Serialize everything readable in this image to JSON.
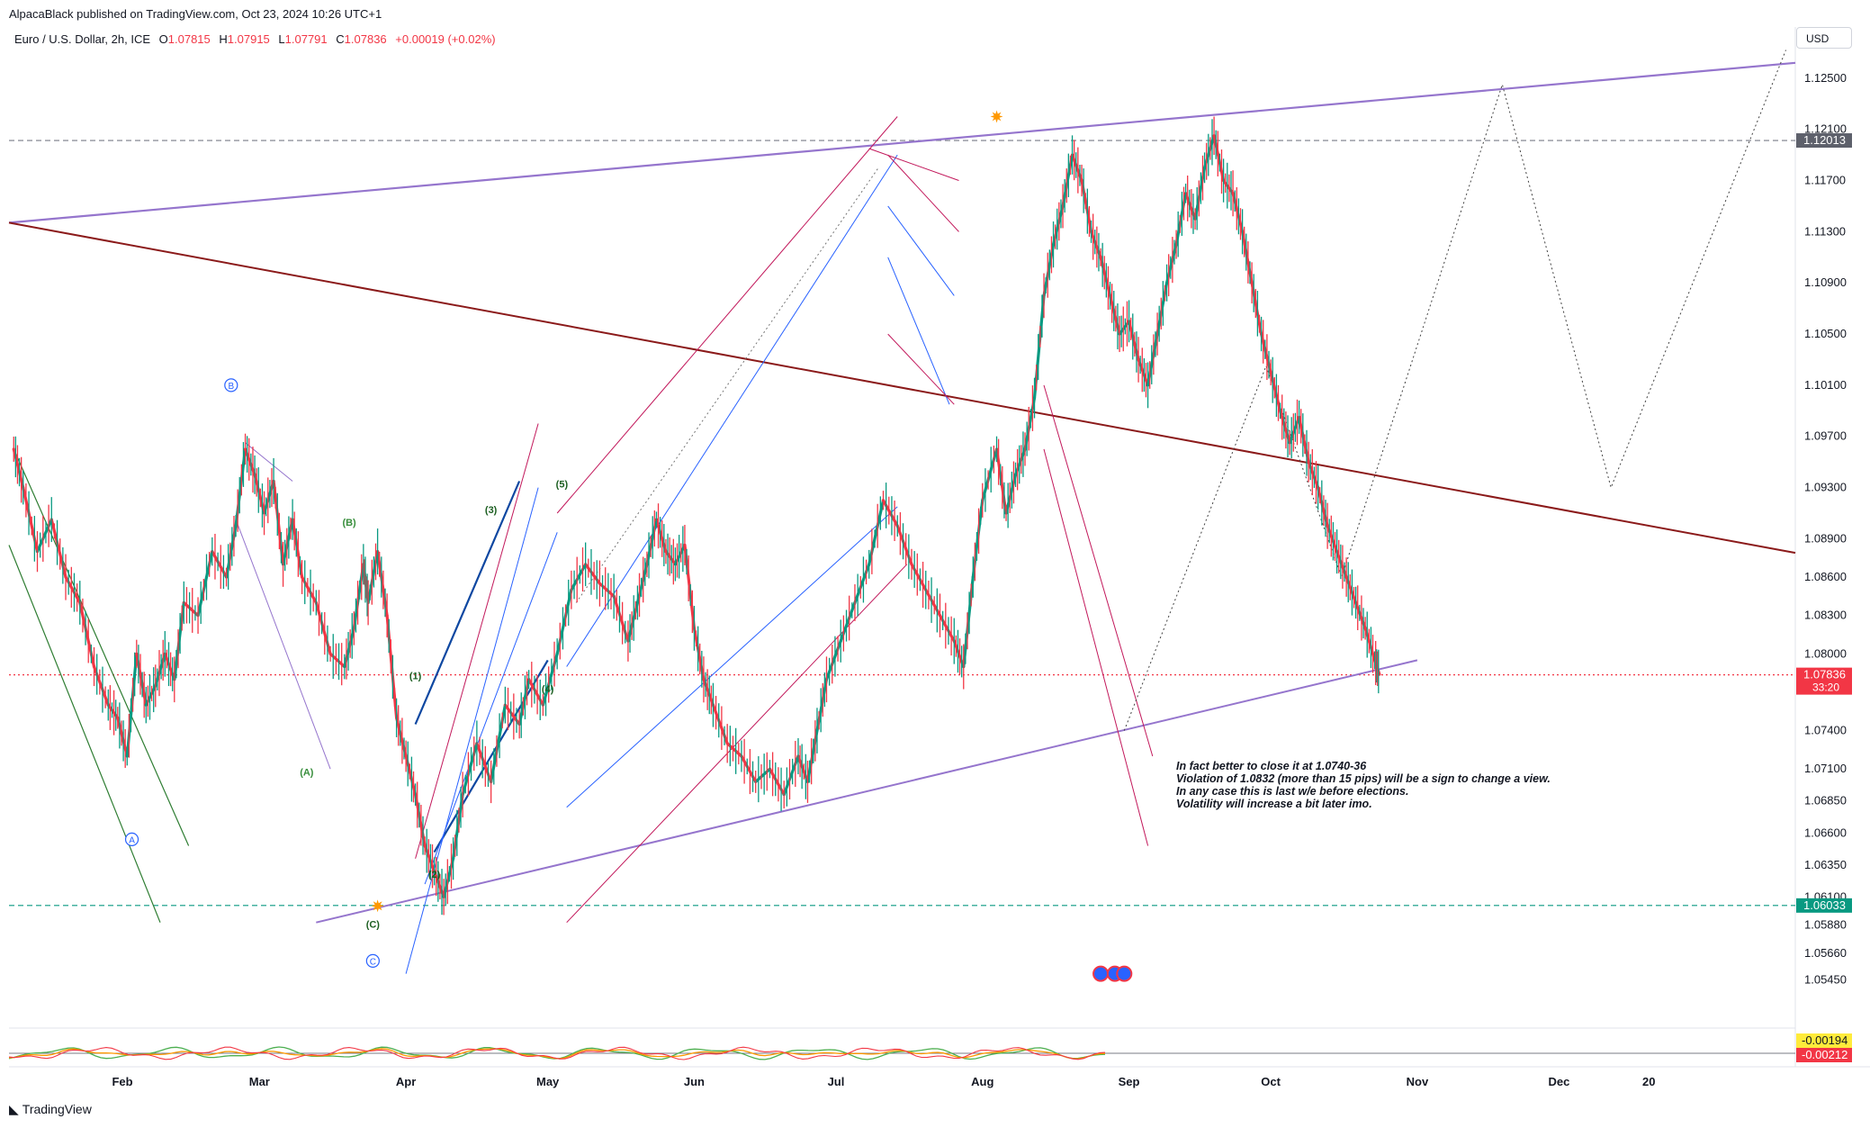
{
  "header": {
    "published": "AlpacaBlack published on TradingView.com, Oct 23, 2024 10:26 UTC+1",
    "symbol": "Euro / U.S. Dollar, 2h, ICE",
    "o_label": "O",
    "o": "1.07815",
    "h_label": "H",
    "h": "1.07915",
    "l_label": "L",
    "l": "1.07791",
    "c_label": "C",
    "c": "1.07836",
    "change": "+0.00019 (+0.02%)"
  },
  "currency_button": "USD",
  "annotation": {
    "line1": "In fact better to close it at 1.0740-36",
    "line2": "Violation of 1.0832 (more than 15 pips) will be a sign to change a view.",
    "line3": "In any case this is last w/e before elections.",
    "line4": "Volatility will increase a bit later imo."
  },
  "footer": {
    "brand": "TradingView",
    "logo": "tv-logo-icon"
  },
  "colors": {
    "up": "#089981",
    "down": "#f23645",
    "purple": "#9575cd",
    "maroon": "#8b1a1a",
    "blue": "#2962ff",
    "green": "#2e7d32",
    "red_channel": "#c2185b",
    "wave_label": "#1b5e20"
  },
  "chart_data": {
    "type": "line",
    "title": "",
    "xlabel": "",
    "ylabel": "",
    "x_ticks": [
      {
        "label": "Feb",
        "t": 24
      },
      {
        "label": "Mar",
        "t": 53
      },
      {
        "label": "Apr",
        "t": 84
      },
      {
        "label": "May",
        "t": 114
      },
      {
        "label": "Jun",
        "t": 145
      },
      {
        "label": "Jul",
        "t": 175
      },
      {
        "label": "Aug",
        "t": 206
      },
      {
        "label": "Sep",
        "t": 237
      },
      {
        "label": "Oct",
        "t": 267
      },
      {
        "label": "Nov",
        "t": 298
      },
      {
        "label": "Dec",
        "t": 328
      },
      {
        "label": "20",
        "t": 347
      }
    ],
    "x_unit": "days since Jan 1 2024",
    "ylim": [
      1.053,
      1.129
    ],
    "y_ticks": [
      "1.12500",
      "1.12100",
      "1.11700",
      "1.11300",
      "1.10900",
      "1.10500",
      "1.10100",
      "1.09700",
      "1.09300",
      "1.08900",
      "1.08600",
      "1.08300",
      "1.08000",
      "1.07400",
      "1.07100",
      "1.06850",
      "1.06600",
      "1.06350",
      "1.06100",
      "1.05880",
      "1.05660",
      "1.05450"
    ],
    "price_labels": [
      {
        "value": 1.12013,
        "text": "1.12013",
        "color": "#5d606b"
      },
      {
        "value": 1.07836,
        "text": "1.07836",
        "sub": "33:20",
        "color": "#f23645"
      },
      {
        "value": 1.06033,
        "text": "1.06033",
        "color": "#089981"
      }
    ],
    "price_path": [
      [
        1,
        1.096
      ],
      [
        3,
        1.093
      ],
      [
        6,
        1.088
      ],
      [
        9,
        1.0905
      ],
      [
        12,
        1.086
      ],
      [
        15,
        1.084
      ],
      [
        18,
        1.079
      ],
      [
        21,
        1.076
      ],
      [
        23,
        1.075
      ],
      [
        25,
        1.072
      ],
      [
        27,
        1.08
      ],
      [
        29,
        1.076
      ],
      [
        31,
        1.0775
      ],
      [
        33,
        1.08
      ],
      [
        35,
        1.078
      ],
      [
        37,
        1.084
      ],
      [
        40,
        1.083
      ],
      [
        43,
        1.088
      ],
      [
        46,
        1.086
      ],
      [
        48,
        1.09
      ],
      [
        50,
        1.096
      ],
      [
        52,
        1.094
      ],
      [
        54,
        1.091
      ],
      [
        56,
        1.0935
      ],
      [
        58,
        1.087
      ],
      [
        60,
        1.0905
      ],
      [
        62,
        1.086
      ],
      [
        65,
        1.084
      ],
      [
        68,
        1.08
      ],
      [
        71,
        1.079
      ],
      [
        73,
        1.082
      ],
      [
        75,
        1.087
      ],
      [
        76,
        1.084
      ],
      [
        78,
        1.088
      ],
      [
        80,
        1.083
      ],
      [
        82,
        1.075
      ],
      [
        84,
        1.072
      ],
      [
        86,
        1.069
      ],
      [
        88,
        1.065
      ],
      [
        90,
        1.063
      ],
      [
        92,
        1.061
      ],
      [
        94,
        1.064
      ],
      [
        96,
        1.069
      ],
      [
        99,
        1.073
      ],
      [
        102,
        1.07
      ],
      [
        105,
        1.076
      ],
      [
        108,
        1.0745
      ],
      [
        110,
        1.078
      ],
      [
        113,
        1.076
      ],
      [
        116,
        1.08
      ],
      [
        119,
        1.085
      ],
      [
        122,
        1.087
      ],
      [
        125,
        1.0855
      ],
      [
        128,
        1.0845
      ],
      [
        131,
        1.081
      ],
      [
        133,
        1.084
      ],
      [
        135,
        1.087
      ],
      [
        137,
        1.0905
      ],
      [
        139,
        1.088
      ],
      [
        141,
        1.087
      ],
      [
        143,
        1.0885
      ],
      [
        145,
        1.082
      ],
      [
        147,
        1.078
      ],
      [
        149,
        1.076
      ],
      [
        152,
        1.073
      ],
      [
        155,
        1.072
      ],
      [
        158,
        1.07
      ],
      [
        161,
        1.071
      ],
      [
        164,
        1.069
      ],
      [
        167,
        1.072
      ],
      [
        169,
        1.07
      ],
      [
        171,
        1.074
      ],
      [
        173,
        1.078
      ],
      [
        176,
        1.081
      ],
      [
        179,
        1.084
      ],
      [
        182,
        1.087
      ],
      [
        185,
        1.092
      ],
      [
        188,
        1.09
      ],
      [
        191,
        1.087
      ],
      [
        194,
        1.085
      ],
      [
        197,
        1.083
      ],
      [
        200,
        1.081
      ],
      [
        202,
        1.079
      ],
      [
        204,
        1.086
      ],
      [
        206,
        1.092
      ],
      [
        209,
        1.096
      ],
      [
        211,
        1.091
      ],
      [
        213,
        1.094
      ],
      [
        215,
        1.096
      ],
      [
        217,
        1.1
      ],
      [
        219,
        1.108
      ],
      [
        221,
        1.112
      ],
      [
        223,
        1.115
      ],
      [
        225,
        1.119
      ],
      [
        227,
        1.117
      ],
      [
        229,
        1.113
      ],
      [
        231,
        1.111
      ],
      [
        233,
        1.108
      ],
      [
        235,
        1.105
      ],
      [
        237,
        1.106
      ],
      [
        239,
        1.103
      ],
      [
        241,
        1.101
      ],
      [
        243,
        1.105
      ],
      [
        245,
        1.109
      ],
      [
        247,
        1.112
      ],
      [
        249,
        1.116
      ],
      [
        251,
        1.114
      ],
      [
        253,
        1.118
      ],
      [
        255,
        1.1205
      ],
      [
        257,
        1.117
      ],
      [
        259,
        1.116
      ],
      [
        261,
        1.113
      ],
      [
        263,
        1.109
      ],
      [
        265,
        1.105
      ],
      [
        267,
        1.102
      ],
      [
        269,
        1.099
      ],
      [
        271,
        1.0965
      ],
      [
        273,
        1.0985
      ],
      [
        275,
        1.095
      ],
      [
        277,
        1.093
      ],
      [
        279,
        1.09
      ],
      [
        281,
        1.088
      ],
      [
        283,
        1.086
      ],
      [
        285,
        1.084
      ],
      [
        287,
        1.082
      ],
      [
        289,
        1.0795
      ],
      [
        290,
        1.0784
      ]
    ],
    "lines": [
      {
        "name": "",
        "color": "#9575cd",
        "width": 2.2,
        "points": [
          [
            0,
            1.1137
          ],
          [
            378,
            1.1262
          ]
        ]
      },
      {
        "name": "",
        "color": "#9575cd",
        "width": 2,
        "points": [
          [
            65,
            1.059
          ],
          [
            298,
            1.0795
          ]
        ]
      },
      {
        "name": "",
        "color": "#8b1a1a",
        "width": 2,
        "points": [
          [
            0,
            1.1137
          ],
          [
            378,
            1.0879
          ]
        ]
      },
      {
        "name": "",
        "color": "#9575cd",
        "width": 1,
        "points": [
          [
            50,
            1.0965
          ],
          [
            60,
            1.0935
          ]
        ]
      },
      {
        "name": "",
        "color": "#9575cd",
        "width": 1,
        "points": [
          [
            48,
            1.0905
          ],
          [
            68,
            1.071
          ]
        ]
      },
      {
        "name": "",
        "color": "#2e7d32",
        "width": 1.2,
        "points": [
          [
            1,
            1.096
          ],
          [
            38,
            1.065
          ]
        ]
      },
      {
        "name": "",
        "color": "#2e7d32",
        "width": 1.2,
        "points": [
          [
            0,
            1.0885
          ],
          [
            32,
            1.059
          ]
        ]
      },
      {
        "name": "",
        "color": "#0d47a1",
        "width": 2.2,
        "points": [
          [
            86,
            1.0745
          ],
          [
            108,
            1.0935
          ]
        ]
      },
      {
        "name": "",
        "color": "#0d47a1",
        "width": 2.2,
        "points": [
          [
            90,
            1.0645
          ],
          [
            114,
            1.0795
          ]
        ]
      },
      {
        "name": "",
        "color": "#2962ff",
        "width": 1,
        "points": [
          [
            84,
            1.055
          ],
          [
            112,
            1.093
          ]
        ]
      },
      {
        "name": "",
        "color": "#2962ff",
        "width": 1,
        "points": [
          [
            88,
            1.062
          ],
          [
            116,
            1.0895
          ]
        ]
      },
      {
        "name": "",
        "color": "#c2185b",
        "width": 1,
        "points": [
          [
            86,
            1.064
          ],
          [
            112,
            1.098
          ]
        ]
      },
      {
        "name": "",
        "color": "#2962ff",
        "width": 1,
        "points": [
          [
            118,
            1.079
          ],
          [
            188,
            1.119
          ]
        ]
      },
      {
        "name": "",
        "color": "#2962ff",
        "width": 1,
        "points": [
          [
            118,
            1.068
          ],
          [
            188,
            1.0915
          ]
        ]
      },
      {
        "name": "",
        "color": "#c2185b",
        "width": 1,
        "points": [
          [
            116,
            1.091
          ],
          [
            188,
            1.122
          ]
        ]
      },
      {
        "name": "",
        "color": "#c2185b",
        "width": 1,
        "points": [
          [
            118,
            1.059
          ],
          [
            190,
            1.087
          ]
        ]
      },
      {
        "name": "",
        "color": "#757575",
        "width": 1,
        "dash": "2,3",
        "points": [
          [
            120,
            1.084
          ],
          [
            184,
            1.118
          ]
        ]
      },
      {
        "name": "",
        "color": "#c2185b",
        "width": 1,
        "points": [
          [
            182,
            1.1195
          ],
          [
            201,
            1.117
          ]
        ]
      },
      {
        "name": "",
        "color": "#c2185b",
        "width": 1,
        "points": [
          [
            186,
            1.119
          ],
          [
            201,
            1.113
          ]
        ]
      },
      {
        "name": "",
        "color": "#2962ff",
        "width": 1,
        "points": [
          [
            186,
            1.115
          ],
          [
            200,
            1.108
          ]
        ]
      },
      {
        "name": "",
        "color": "#2962ff",
        "width": 1,
        "points": [
          [
            186,
            1.111
          ],
          [
            199,
            1.0995
          ]
        ]
      },
      {
        "name": "",
        "color": "#c2185b",
        "width": 1,
        "points": [
          [
            186,
            1.105
          ],
          [
            200,
            1.0995
          ]
        ]
      },
      {
        "name": "",
        "color": "#c2185b",
        "width": 1,
        "points": [
          [
            219,
            1.101
          ],
          [
            242,
            1.072
          ]
        ]
      },
      {
        "name": "",
        "color": "#c2185b",
        "width": 1,
        "points": [
          [
            219,
            1.096
          ],
          [
            241,
            1.065
          ]
        ]
      },
      {
        "name": "",
        "color": "#424242",
        "width": 1,
        "dash": "2,3",
        "points": [
          [
            236,
            1.074
          ],
          [
            266,
            1.1025
          ],
          [
            282,
            1.086
          ],
          [
            316,
            1.1245
          ],
          [
            339,
            1.093
          ],
          [
            376,
            1.1272
          ]
        ]
      }
    ],
    "levels": [
      {
        "value": 1.12013,
        "color": "#787b86",
        "dash": "6,4"
      },
      {
        "value": 1.07836,
        "color": "#f23645",
        "dash": "2,3"
      },
      {
        "value": 1.06033,
        "color": "#089981",
        "dash": "6,4"
      }
    ],
    "wave_labels": [
      {
        "text": "A",
        "circle": true,
        "t": 26,
        "y": 1.0655,
        "color": "#2962ff"
      },
      {
        "text": "B",
        "circle": true,
        "t": 47,
        "y": 1.101,
        "color": "#2962ff"
      },
      {
        "text": "C",
        "circle": true,
        "t": 77,
        "y": 1.056,
        "color": "#2962ff"
      },
      {
        "text": "(A)",
        "circle": false,
        "t": 63,
        "y": 1.0705,
        "color": "#388e3c"
      },
      {
        "text": "(B)",
        "circle": false,
        "t": 72,
        "y": 1.09,
        "color": "#388e3c"
      },
      {
        "text": "(C)",
        "circle": false,
        "t": 77,
        "y": 1.0586,
        "color": "#1b5e20"
      },
      {
        "text": "(1)",
        "circle": false,
        "t": 86,
        "y": 1.078,
        "color": "#1b5e20"
      },
      {
        "text": "(2)",
        "circle": false,
        "t": 90,
        "y": 1.0625,
        "color": "#1b5e20"
      },
      {
        "text": "(3)",
        "circle": false,
        "t": 102,
        "y": 1.091,
        "color": "#1b5e20"
      },
      {
        "text": "(4)",
        "circle": false,
        "t": 114,
        "y": 1.077,
        "color": "#1b5e20"
      },
      {
        "text": "(5)",
        "circle": false,
        "t": 117,
        "y": 1.093,
        "color": "#1b5e20"
      }
    ],
    "markers": [
      {
        "name": "star-marker",
        "t": 78,
        "y": 1.0603,
        "color": "#ff9800"
      },
      {
        "name": "star-marker",
        "t": 209,
        "y": 1.122,
        "color": "#ff9800"
      }
    ],
    "event_icons": [
      {
        "t": 231,
        "y": 1.055
      },
      {
        "t": 234,
        "y": 1.055
      },
      {
        "t": 236,
        "y": 1.055
      }
    ],
    "oscillator": {
      "label_upper": "-0.00194",
      "label_lower": "-0.00212",
      "upper_color": "#ffeb3b",
      "lower_color": "#f23645"
    }
  }
}
